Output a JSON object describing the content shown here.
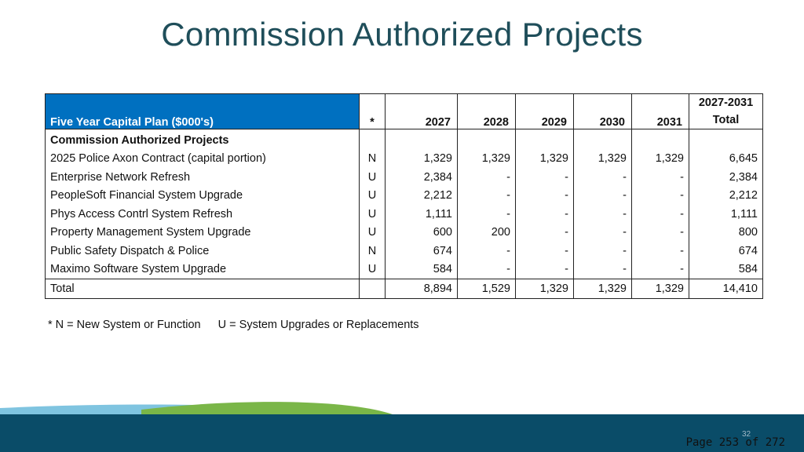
{
  "title": "Commission Authorized Projects",
  "table": {
    "header": {
      "label": "Five Year Capital Plan ($000's)",
      "code": "*",
      "years": [
        "2027",
        "2028",
        "2029",
        "2030",
        "2031"
      ],
      "total_line1": "2027-2031",
      "total_line2": "Total"
    },
    "section_label": "Commission Authorized Projects",
    "rows": [
      {
        "name": "2025 Police Axon Contract (capital portion)",
        "code": "N",
        "values": [
          "1,329",
          "1,329",
          "1,329",
          "1,329",
          "1,329"
        ],
        "total": "6,645"
      },
      {
        "name": "Enterprise Network Refresh",
        "code": "U",
        "values": [
          "2,384",
          "-",
          "-",
          "-",
          "-"
        ],
        "total": "2,384"
      },
      {
        "name": "PeopleSoft Financial System Upgrade",
        "code": "U",
        "values": [
          "2,212",
          "-",
          "-",
          "-",
          "-"
        ],
        "total": "2,212"
      },
      {
        "name": "Phys Access Contrl System Refresh",
        "code": "U",
        "values": [
          "1,111",
          "-",
          "-",
          "-",
          "-"
        ],
        "total": "1,111"
      },
      {
        "name": "Property Management System Upgrade",
        "code": "U",
        "values": [
          "600",
          "200",
          "-",
          "-",
          "-"
        ],
        "total": "800"
      },
      {
        "name": "Public Safety Dispatch & Police",
        "code": "N",
        "values": [
          "674",
          "-",
          "-",
          "-",
          "-"
        ],
        "total": "674"
      },
      {
        "name": "Maximo Software System Upgrade",
        "code": "U",
        "values": [
          "584",
          "-",
          "-",
          "-",
          "-"
        ],
        "total": "584"
      }
    ],
    "total_row": {
      "label": "Total",
      "values": [
        "8,894",
        "1,529",
        "1,329",
        "1,329",
        "1,329"
      ],
      "total": "14,410"
    }
  },
  "footnote": {
    "n_note": "* N = New System or Function",
    "u_note": "U = System Upgrades or Replacements"
  },
  "slide_number": "32",
  "page_label": "Page 253 of 272",
  "colors": {
    "title": "#1f4e5a",
    "header_fill": "#0070c0",
    "band": "#0a4c68",
    "swoosh_light": "#7fc4e0",
    "swoosh_green": "#7ab648"
  }
}
